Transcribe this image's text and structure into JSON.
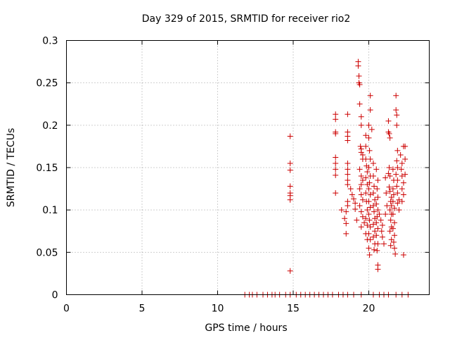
{
  "chart_data": {
    "type": "scatter",
    "title": "Day 329 of 2015, SRMTID for receiver rio2",
    "xlabel": "GPS time / hours",
    "ylabel": "SRMTID / TECUs",
    "xlim": [
      0,
      24
    ],
    "ylim": [
      0,
      0.3
    ],
    "xticks": [
      "0",
      "5",
      "10",
      "15",
      "20"
    ],
    "xtick_values": [
      0,
      5,
      10,
      15,
      20
    ],
    "yticks": [
      "0",
      "0.05",
      "0.1",
      "0.15",
      "0.2",
      "0.25",
      "0.3"
    ],
    "ytick_values": [
      0,
      0.05,
      0.1,
      0.15,
      0.2,
      0.25,
      0.3
    ],
    "grid": true,
    "marker": "+",
    "color": "#cc0000",
    "series": [
      {
        "name": "SRMTID",
        "points": [
          [
            11.8,
            0
          ],
          [
            12.1,
            0
          ],
          [
            12.3,
            0
          ],
          [
            12.6,
            0
          ],
          [
            13.0,
            0
          ],
          [
            13.3,
            0
          ],
          [
            13.6,
            0
          ],
          [
            13.8,
            0
          ],
          [
            14.1,
            0
          ],
          [
            14.5,
            0
          ],
          [
            14.8,
            0
          ],
          [
            15.2,
            0
          ],
          [
            15.5,
            0
          ],
          [
            15.8,
            0
          ],
          [
            16.1,
            0
          ],
          [
            16.4,
            0
          ],
          [
            16.7,
            0
          ],
          [
            17.0,
            0
          ],
          [
            17.3,
            0
          ],
          [
            17.6,
            0
          ],
          [
            18.0,
            0
          ],
          [
            18.3,
            0
          ],
          [
            18.6,
            0
          ],
          [
            19.0,
            0
          ],
          [
            19.5,
            0
          ],
          [
            20.3,
            0
          ],
          [
            20.7,
            0
          ],
          [
            21.0,
            0
          ],
          [
            21.3,
            0
          ],
          [
            21.8,
            0
          ],
          [
            22.2,
            0
          ],
          [
            22.6,
            0
          ],
          [
            14.8,
            0.187
          ],
          [
            14.8,
            0.155
          ],
          [
            14.8,
            0.147
          ],
          [
            14.8,
            0.128
          ],
          [
            14.8,
            0.12
          ],
          [
            14.8,
            0.117
          ],
          [
            14.8,
            0.112
          ],
          [
            14.8,
            0.028
          ],
          [
            17.8,
            0.213
          ],
          [
            17.8,
            0.207
          ],
          [
            17.8,
            0.192
          ],
          [
            17.8,
            0.19
          ],
          [
            17.8,
            0.162
          ],
          [
            17.8,
            0.155
          ],
          [
            17.8,
            0.148
          ],
          [
            17.8,
            0.141
          ],
          [
            17.8,
            0.12
          ],
          [
            18.2,
            0.1
          ],
          [
            18.4,
            0.09
          ],
          [
            18.5,
            0.084
          ],
          [
            18.5,
            0.072
          ],
          [
            18.5,
            0.098
          ],
          [
            18.6,
            0.213
          ],
          [
            18.6,
            0.192
          ],
          [
            18.6,
            0.187
          ],
          [
            18.6,
            0.182
          ],
          [
            18.6,
            0.155
          ],
          [
            18.6,
            0.148
          ],
          [
            18.6,
            0.142
          ],
          [
            18.6,
            0.135
          ],
          [
            18.6,
            0.13
          ],
          [
            18.6,
            0.11
          ],
          [
            18.6,
            0.105
          ],
          [
            18.8,
            0.125
          ],
          [
            18.9,
            0.118
          ],
          [
            19.0,
            0.113
          ],
          [
            19.1,
            0.108
          ],
          [
            19.1,
            0.101
          ],
          [
            19.2,
            0.088
          ],
          [
            19.3,
            0.275
          ],
          [
            19.3,
            0.27
          ],
          [
            19.35,
            0.258
          ],
          [
            19.35,
            0.25
          ],
          [
            19.4,
            0.248
          ],
          [
            19.4,
            0.225
          ],
          [
            19.5,
            0.21
          ],
          [
            19.5,
            0.2
          ],
          [
            19.45,
            0.175
          ],
          [
            19.5,
            0.172
          ],
          [
            19.5,
            0.168
          ],
          [
            19.6,
            0.165
          ],
          [
            19.6,
            0.16
          ],
          [
            19.4,
            0.148
          ],
          [
            19.5,
            0.14
          ],
          [
            19.6,
            0.135
          ],
          [
            19.5,
            0.13
          ],
          [
            19.4,
            0.125
          ],
          [
            19.5,
            0.118
          ],
          [
            19.6,
            0.112
          ],
          [
            19.4,
            0.105
          ],
          [
            19.5,
            0.098
          ],
          [
            19.6,
            0.092
          ],
          [
            19.7,
            0.085
          ],
          [
            19.5,
            0.08
          ],
          [
            19.8,
            0.188
          ],
          [
            19.8,
            0.175
          ],
          [
            19.8,
            0.16
          ],
          [
            19.85,
            0.152
          ],
          [
            19.9,
            0.145
          ],
          [
            19.8,
            0.138
          ],
          [
            19.9,
            0.13
          ],
          [
            19.8,
            0.12
          ],
          [
            19.85,
            0.11
          ],
          [
            19.9,
            0.1
          ],
          [
            19.8,
            0.09
          ],
          [
            19.9,
            0.082
          ],
          [
            19.8,
            0.072
          ],
          [
            19.9,
            0.065
          ],
          [
            20.0,
            0.2
          ],
          [
            20.0,
            0.185
          ],
          [
            20.05,
            0.17
          ],
          [
            20.1,
            0.16
          ],
          [
            20.0,
            0.15
          ],
          [
            20.1,
            0.14
          ],
          [
            20.05,
            0.132
          ],
          [
            20.0,
            0.125
          ],
          [
            20.1,
            0.118
          ],
          [
            20.0,
            0.11
          ],
          [
            20.1,
            0.103
          ],
          [
            20.0,
            0.095
          ],
          [
            20.05,
            0.088
          ],
          [
            20.1,
            0.08
          ],
          [
            20.0,
            0.072
          ],
          [
            20.1,
            0.065
          ],
          [
            20.0,
            0.055
          ],
          [
            20.05,
            0.047
          ],
          [
            20.1,
            0.235
          ],
          [
            20.1,
            0.218
          ],
          [
            20.2,
            0.195
          ],
          [
            20.3,
            0.155
          ],
          [
            20.3,
            0.14
          ],
          [
            20.35,
            0.128
          ],
          [
            20.3,
            0.12
          ],
          [
            20.4,
            0.112
          ],
          [
            20.3,
            0.105
          ],
          [
            20.35,
            0.098
          ],
          [
            20.4,
            0.09
          ],
          [
            20.3,
            0.083
          ],
          [
            20.4,
            0.075
          ],
          [
            20.3,
            0.068
          ],
          [
            20.4,
            0.06
          ],
          [
            20.35,
            0.053
          ],
          [
            20.5,
            0.148
          ],
          [
            20.6,
            0.135
          ],
          [
            20.55,
            0.125
          ],
          [
            20.6,
            0.115
          ],
          [
            20.5,
            0.107
          ],
          [
            20.6,
            0.1
          ],
          [
            20.55,
            0.092
          ],
          [
            20.5,
            0.085
          ],
          [
            20.6,
            0.078
          ],
          [
            20.5,
            0.07
          ],
          [
            20.6,
            0.06
          ],
          [
            20.55,
            0.052
          ],
          [
            20.6,
            0.035
          ],
          [
            20.6,
            0.03
          ],
          [
            20.7,
            0.095
          ],
          [
            20.8,
            0.088
          ],
          [
            20.9,
            0.082
          ],
          [
            20.85,
            0.075
          ],
          [
            20.9,
            0.068
          ],
          [
            21.0,
            0.06
          ],
          [
            21.1,
            0.138
          ],
          [
            21.15,
            0.12
          ],
          [
            21.2,
            0.105
          ],
          [
            21.1,
            0.095
          ],
          [
            21.3,
            0.205
          ],
          [
            21.3,
            0.192
          ],
          [
            21.35,
            0.19
          ],
          [
            21.4,
            0.185
          ],
          [
            21.35,
            0.15
          ],
          [
            21.3,
            0.143
          ],
          [
            21.4,
            0.14
          ],
          [
            21.35,
            0.127
          ],
          [
            21.4,
            0.122
          ],
          [
            21.5,
            0.115
          ],
          [
            21.45,
            0.11
          ],
          [
            21.5,
            0.105
          ],
          [
            21.4,
            0.1
          ],
          [
            21.5,
            0.095
          ],
          [
            21.45,
            0.088
          ],
          [
            21.5,
            0.08
          ],
          [
            21.4,
            0.075
          ],
          [
            21.5,
            0.065
          ],
          [
            21.45,
            0.058
          ],
          [
            21.6,
            0.148
          ],
          [
            21.65,
            0.135
          ],
          [
            21.6,
            0.125
          ],
          [
            21.65,
            0.118
          ],
          [
            21.6,
            0.11
          ],
          [
            21.7,
            0.102
          ],
          [
            21.6,
            0.095
          ],
          [
            21.7,
            0.085
          ],
          [
            21.6,
            0.078
          ],
          [
            21.7,
            0.07
          ],
          [
            21.65,
            0.062
          ],
          [
            21.7,
            0.055
          ],
          [
            21.75,
            0.048
          ],
          [
            21.8,
            0.235
          ],
          [
            21.8,
            0.218
          ],
          [
            21.85,
            0.212
          ],
          [
            21.85,
            0.2
          ],
          [
            21.9,
            0.17
          ],
          [
            21.85,
            0.158
          ],
          [
            21.9,
            0.15
          ],
          [
            21.8,
            0.142
          ],
          [
            21.9,
            0.135
          ],
          [
            21.85,
            0.128
          ],
          [
            21.9,
            0.12
          ],
          [
            22.0,
            0.112
          ],
          [
            21.9,
            0.108
          ],
          [
            22.0,
            0.1
          ],
          [
            22.1,
            0.165
          ],
          [
            22.2,
            0.155
          ],
          [
            22.15,
            0.148
          ],
          [
            22.2,
            0.14
          ],
          [
            22.3,
            0.132
          ],
          [
            22.2,
            0.125
          ],
          [
            22.3,
            0.118
          ],
          [
            22.2,
            0.11
          ],
          [
            22.3,
            0.175
          ],
          [
            22.4,
            0.175
          ],
          [
            22.4,
            0.16
          ],
          [
            22.4,
            0.142
          ],
          [
            22.3,
            0.047
          ]
        ]
      }
    ]
  }
}
